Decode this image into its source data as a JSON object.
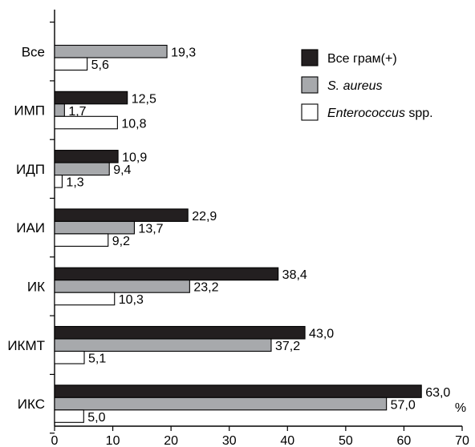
{
  "chart_data": {
    "type": "bar",
    "orientation": "horizontal",
    "categories": [
      "Все",
      "ИМП",
      "ИДП",
      "ИАИ",
      "ИК",
      "ИКМТ",
      "ИКС"
    ],
    "series": [
      {
        "name": "Все грам(+)",
        "values": [
          null,
          12.5,
          10.9,
          22.9,
          38.4,
          43.0,
          63.0
        ],
        "color": "#231f20"
      },
      {
        "name": "S. aureus",
        "values": [
          19.3,
          1.7,
          9.4,
          13.7,
          23.2,
          37.2,
          57.0
        ],
        "color": "#a7a9ac"
      },
      {
        "name": "Enterococcus spp.",
        "values": [
          5.6,
          10.8,
          1.3,
          9.2,
          10.3,
          5.1,
          5.0
        ],
        "color": "#ffffff"
      }
    ],
    "value_labels": [
      [
        "",
        "12,5",
        "10,9",
        "22,9",
        "38,4",
        "43,0",
        "63,0"
      ],
      [
        "19,3",
        "1,7",
        "9,4",
        "13,7",
        "23,2",
        "37,2",
        "57,0"
      ],
      [
        "5,6",
        "10,8",
        "1,3",
        "9,2",
        "10,3",
        "5,1",
        "5,0"
      ]
    ],
    "legend": [
      {
        "text": "Все грам(+)",
        "italic_part": "",
        "rest": ""
      },
      {
        "text": "",
        "italic_part": "S. aureus",
        "rest": ""
      },
      {
        "text": "",
        "italic_part": "Enterococcus",
        "rest": " spp."
      }
    ],
    "legend_position": "top-right",
    "xlim": [
      0,
      70
    ],
    "x_ticks": [
      "0",
      "10",
      "20",
      "30",
      "40",
      "50",
      "60",
      "70"
    ],
    "x_unit": "%",
    "grid": false
  }
}
